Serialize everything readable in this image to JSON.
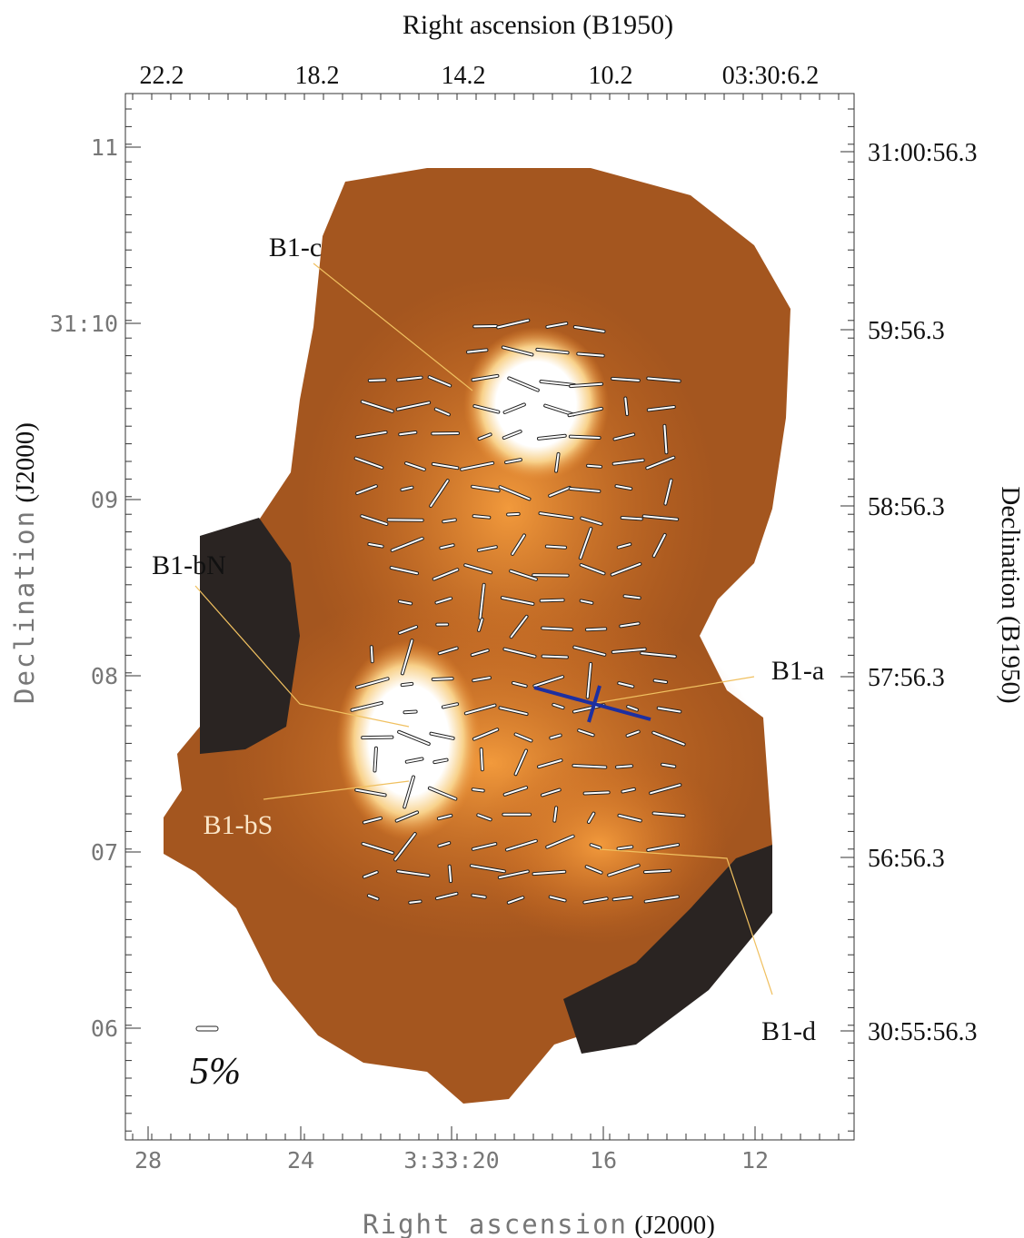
{
  "figure": {
    "top_axis": {
      "label": "Right ascension (B1950)",
      "ticks": [
        "22.2",
        "18.2",
        "14.2",
        "10.2",
        "03:30:6.2"
      ]
    },
    "bottom_axis": {
      "label": "Right ascension",
      "epoch": "(J2000)",
      "ticks": [
        "28",
        "24",
        "3:33:20",
        "16",
        "12"
      ]
    },
    "left_axis": {
      "label": "Declination",
      "epoch": "(J2000)",
      "ticks": [
        "11",
        "31:10",
        "09",
        "08",
        "07",
        "06"
      ]
    },
    "right_axis": {
      "label": "Declination (B1950)",
      "ticks": [
        "31:00:56.3",
        "59:56.3",
        "58:56.3",
        "57:56.3",
        "56:56.3",
        "30:55:56.3"
      ]
    },
    "sources": [
      "B1-c",
      "B1-bN",
      "B1-a",
      "B1-bS",
      "B1-d"
    ],
    "scale_bar_label": "5%"
  }
}
